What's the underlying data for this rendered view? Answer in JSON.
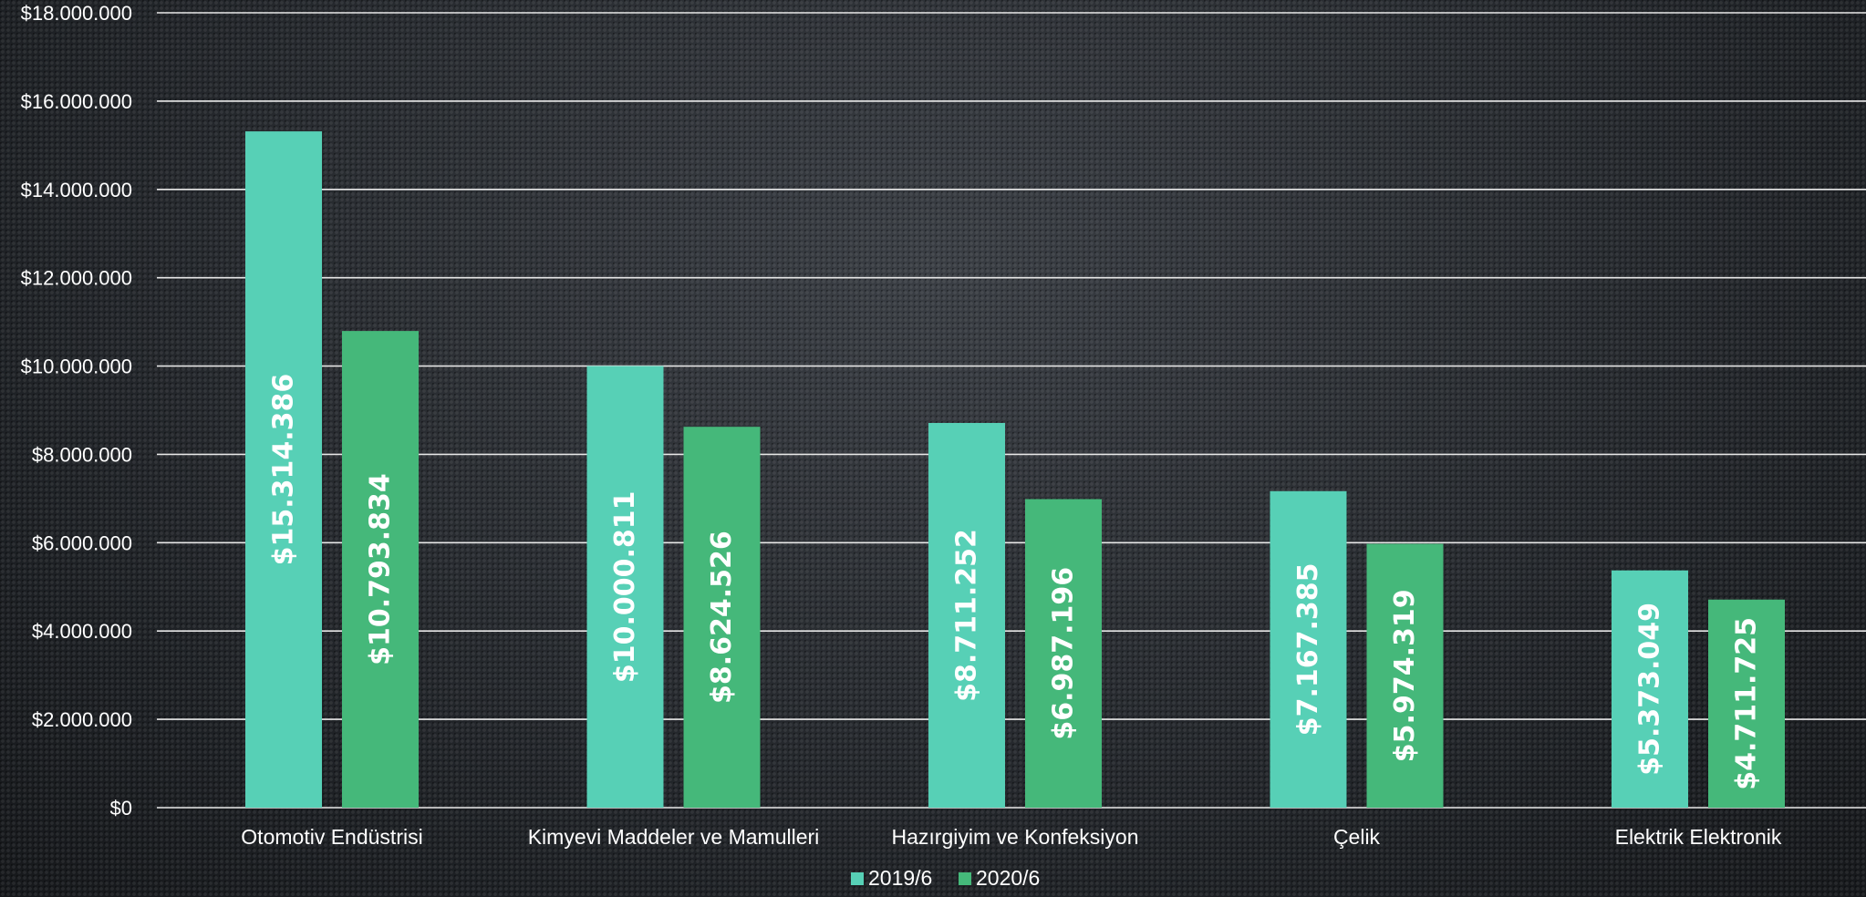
{
  "chart_data": {
    "type": "bar",
    "title": "",
    "xlabel": "",
    "ylabel": "",
    "categories": [
      "Otomotiv Endüstrisi",
      "Kimyevi Maddeler ve Mamulleri",
      "Hazırgiyim ve Konfeksiyon",
      "Çelik",
      "Elektrik Elektronik"
    ],
    "series": [
      {
        "name": "2019/6",
        "color": "#57d0b6",
        "values": [
          15314386,
          10000811,
          8711252,
          7167385,
          5373049
        ],
        "labels": [
          "$15.314.386",
          "$10.000.811",
          "$8.711.252",
          "$7.167.385",
          "$5.373.049"
        ]
      },
      {
        "name": "2020/6",
        "color": "#45b87a",
        "values": [
          10793834,
          8624526,
          6987196,
          5974319,
          4711725
        ],
        "labels": [
          "$10.793.834",
          "$8.624.526",
          "$6.987.196",
          "$5.974.319",
          "$4.711.725"
        ]
      }
    ],
    "ylim": [
      0,
      18000000
    ],
    "yticks": [
      0,
      2000000,
      4000000,
      6000000,
      8000000,
      10000000,
      12000000,
      14000000,
      16000000,
      18000000
    ],
    "ytick_labels": [
      "$0",
      "$2.000.000",
      "$4.000.000",
      "$6.000.000",
      "$8.000.000",
      "$10.000.000",
      "$12.000.000",
      "$14.000.000",
      "$16.000.000",
      "$18.000.000"
    ],
    "grid": true,
    "legend_position": "bottom-center"
  }
}
